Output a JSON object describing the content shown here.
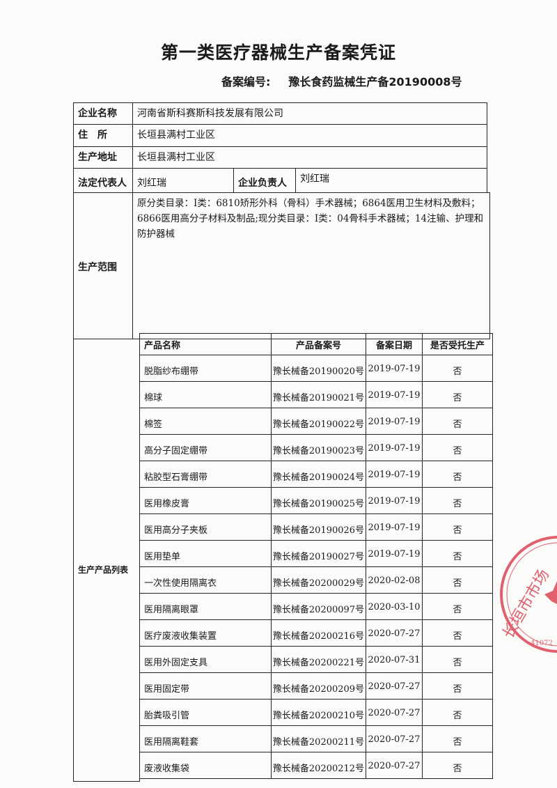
{
  "title": "第一类医疗器械生产备案凭证",
  "record_number_label": "备案编号:",
  "record_number": "豫长食药监械生产备20190008号",
  "fields": {
    "company_label": "企业名称",
    "company": "河南省斯科赛斯科技发展有限公司",
    "address_label": "住　所",
    "address": "长垣县满村工业区",
    "production_address_label": "生产地址",
    "production_address": "长垣县满村工业区",
    "legal_rep_label": "法定代表人",
    "legal_rep": "刘红瑞",
    "head_label": "企业负责人",
    "head": "刘红瑞",
    "scope_label": "生产范围",
    "scope": "原分类目录：Ⅰ类：6810矫形外科（骨科）手术器械；6864医用卫生材料及敷料；6866医用高分子材料及制品;现分类目录：Ⅰ类：04骨科手术器械；14注输、护理和防护器械",
    "products_label": "生产产品列表"
  },
  "product_headers": [
    "产品名称",
    "产品备案号",
    "备案日期",
    "是否受托生产"
  ],
  "products": [
    [
      "脱脂纱布绷带",
      "豫长械备20190020号",
      "2019-07-19",
      "否"
    ],
    [
      "棉球",
      "豫长械备20190021号",
      "2019-07-19",
      "否"
    ],
    [
      "棉签",
      "豫长械备20190022号",
      "2019-07-19",
      "否"
    ],
    [
      "高分子固定绷带",
      "豫长械备20190023号",
      "2019-07-19",
      "否"
    ],
    [
      "粘胶型石膏绷带",
      "豫长械备20190024号",
      "2019-07-19",
      "否"
    ],
    [
      "医用橡皮膏",
      "豫长械备20190025号",
      "2019-07-19",
      "否"
    ],
    [
      "医用高分子夹板",
      "豫长械备20190026号",
      "2019-07-19",
      "否"
    ],
    [
      "医用垫单",
      "豫长械备20190027号",
      "2019-07-19",
      "否"
    ],
    [
      "一次性使用隔离衣",
      "豫长械备20200029号",
      "2020-02-08",
      "否"
    ],
    [
      "医用隔离眼罩",
      "豫长械备20200097号",
      "2020-03-10",
      "否"
    ],
    [
      "医疗废液收集装置",
      "豫长械备20200216号",
      "2020-07-27",
      "否"
    ],
    [
      "医用外固定支具",
      "豫长械备20200221号",
      "2020-07-31",
      "否"
    ],
    [
      "医用固定带",
      "豫长械备20200209号",
      "2020-07-27",
      "否"
    ],
    [
      "胎粪吸引管",
      "豫长械备20200210号",
      "2020-07-27",
      "否"
    ],
    [
      "医用隔离鞋套",
      "豫长械备20200211号",
      "2020-07-27",
      "否"
    ],
    [
      "废液收集袋",
      "豫长械备20200212号",
      "2020-07-27",
      "否"
    ]
  ],
  "stamp": {
    "text": "长垣市市场监",
    "code": "41072",
    "color": "#e0606e"
  }
}
